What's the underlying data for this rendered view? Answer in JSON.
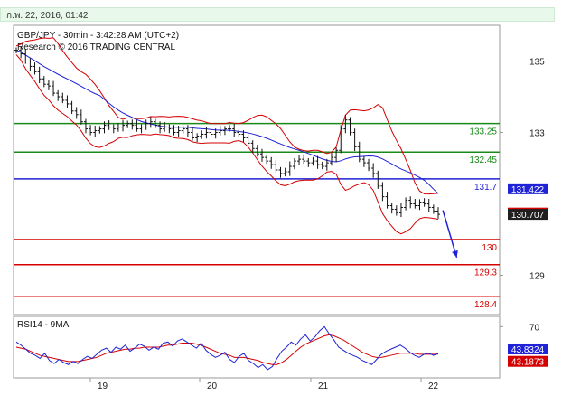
{
  "date_bar": "ก.พ. 22, 2016, 01:42",
  "title_line1": "GBP/JPY - 30min - 3:42:28 AM (UTC+2)",
  "title_line2": "Research © 2016 TRADING CENTRAL",
  "colors": {
    "green": "#1a8a1a",
    "blue": "#1f22d6",
    "red": "#d40000",
    "candle": "#111111",
    "ma": "#1f22d6",
    "band": "#d40000",
    "rsi": "#1f22d6",
    "rsi_ma": "#d40000",
    "price_tag": "#1f1f1f"
  },
  "chart_data": [
    {
      "type": "line",
      "title": "GBP/JPY - 30min - 3:42:28 AM (UTC+2)",
      "subtitle": "Research © 2016 TRADING CENTRAL",
      "ylim": [
        127.9,
        136.0
      ],
      "yticks": [
        "135",
        "133",
        "129"
      ],
      "x_tick_labels": [
        "19",
        "20",
        "21",
        "22"
      ],
      "levels": [
        {
          "value": 133.25,
          "label": "133.25",
          "color": "#1a8a1a"
        },
        {
          "value": 132.45,
          "label": "132.45",
          "color": "#1a8a1a"
        },
        {
          "value": 131.7,
          "label": "131.7",
          "color": "#1f22d6"
        },
        {
          "value": 130.0,
          "label": "130",
          "color": "#d40000"
        },
        {
          "value": 129.3,
          "label": "129.3",
          "color": "#d40000"
        },
        {
          "value": 128.4,
          "label": "128.4",
          "color": "#d40000"
        }
      ],
      "price_tags": [
        {
          "value": 131.422,
          "label": "131.422",
          "color": "#1f22d6"
        },
        {
          "value": 130.743,
          "label": "130.743",
          "color": "#d40000"
        },
        {
          "value": 130.707,
          "label": "130.707",
          "color": "#1f1f1f"
        }
      ],
      "series": [
        {
          "values": [
            135.3,
            135.2,
            135.0,
            134.85,
            134.7,
            134.5,
            134.35,
            134.3,
            134.1,
            134.0,
            133.9,
            133.8,
            133.6,
            133.5,
            133.3,
            133.1,
            133.0,
            133.05,
            133.1,
            133.2,
            133.15,
            133.1,
            133.15,
            133.2,
            133.25,
            133.2,
            133.1,
            133.15,
            133.25,
            133.3,
            133.2,
            133.1,
            133.15,
            133.1,
            133.0,
            133.05,
            133.1,
            133.0,
            132.85,
            132.9,
            132.95,
            133.0,
            132.95,
            133.0,
            133.05,
            133.1,
            133.1,
            133.0,
            132.95,
            132.85,
            132.7,
            132.55,
            132.4,
            132.3,
            132.2,
            132.1,
            131.95,
            131.85,
            131.9,
            132.05,
            132.2,
            132.25,
            132.2,
            132.15,
            132.2,
            132.1,
            132.05,
            132.15,
            132.3,
            132.5,
            133.1,
            133.35,
            133.0,
            132.6,
            132.25,
            132.15,
            132.0,
            131.85,
            131.5,
            131.2,
            130.95,
            130.85,
            130.75,
            130.9,
            131.1,
            131.0,
            130.95,
            131.05,
            131.0,
            130.9,
            130.8,
            130.707
          ]
        }
      ],
      "annotations": [
        {
          "type": "arrow",
          "from": [
            92,
            130.82
          ],
          "to": [
            95,
            129.5
          ],
          "color": "#1f22d6"
        }
      ]
    },
    {
      "type": "line",
      "title": "RSI14 - 9MA",
      "yticks": [
        "70"
      ],
      "ylim": [
        20,
        80
      ],
      "series": [
        {
          "values": [
            55,
            52,
            48,
            44,
            42,
            39,
            44,
            37,
            34,
            38,
            35,
            33,
            36,
            34,
            38,
            41,
            39,
            43,
            47,
            49,
            45,
            50,
            48,
            52,
            46,
            49,
            53,
            51,
            47,
            50,
            48,
            54,
            55,
            51,
            56,
            58,
            55,
            52,
            49,
            54,
            47,
            43,
            40,
            42,
            45,
            38,
            35,
            41,
            44,
            37,
            34,
            30,
            33,
            28,
            31,
            39,
            46,
            50,
            55,
            52,
            58,
            62,
            56,
            60,
            66,
            70,
            63,
            57,
            50,
            47,
            44,
            42,
            40,
            37,
            35,
            33,
            38,
            43,
            46,
            48,
            50,
            52,
            49,
            45,
            42,
            40,
            43,
            44,
            42,
            43.8324
          ]
        },
        {
          "values": [
            50,
            49,
            48,
            46,
            44,
            42,
            41,
            40,
            39,
            38,
            37,
            36,
            36,
            36,
            37,
            38,
            39,
            40,
            42,
            44,
            45,
            46,
            47,
            48,
            48,
            49,
            49,
            50,
            50,
            50,
            50,
            51,
            52,
            52,
            53,
            54,
            54,
            54,
            53,
            52,
            50,
            48,
            46,
            44,
            43,
            42,
            40,
            40,
            40,
            39,
            38,
            37,
            35,
            34,
            33,
            33,
            35,
            38,
            42,
            46,
            50,
            53,
            55,
            57,
            59,
            61,
            62,
            61,
            59,
            57,
            54,
            51,
            48,
            45,
            43,
            41,
            40,
            40,
            41,
            42,
            43,
            44,
            44,
            44,
            44,
            43,
            43,
            43,
            43,
            43.1873
          ]
        }
      ],
      "price_tags": [
        {
          "value": 43.8324,
          "label": "43.8324",
          "color": "#1f22d6"
        },
        {
          "value": 43.1873,
          "label": "43.1873",
          "color": "#d40000"
        }
      ]
    }
  ]
}
